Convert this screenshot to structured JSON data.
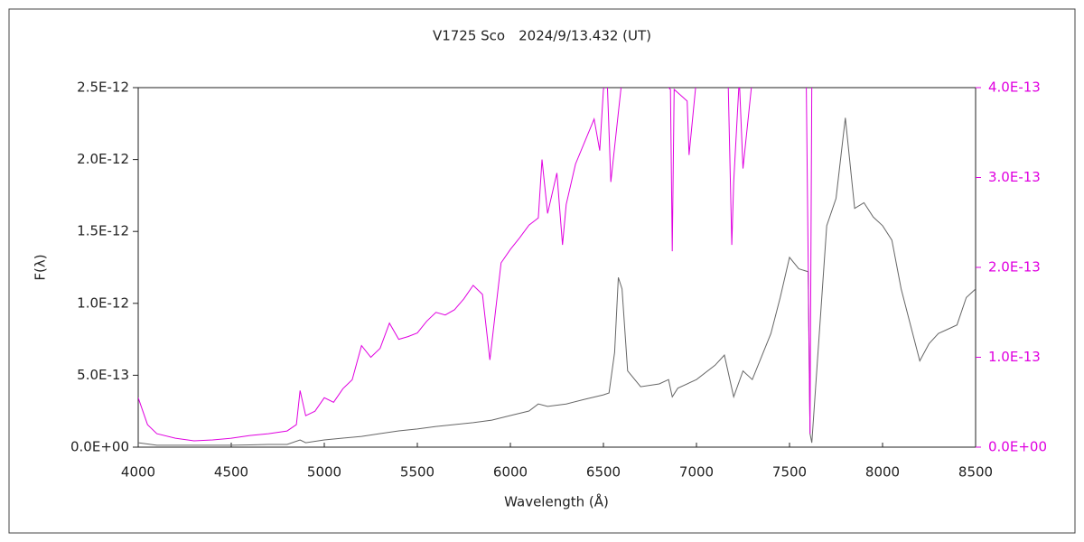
{
  "chart_data": {
    "type": "line",
    "title": "V1725 Sco　2024/9/13.432 (UT)",
    "xlabel": "Wavelength (Å)",
    "ylabel": "F(λ)",
    "xlim": [
      4000,
      8500
    ],
    "xticks": [
      4000,
      4500,
      5000,
      5500,
      6000,
      6500,
      7000,
      7500,
      8000,
      8500
    ],
    "ylim": [
      0,
      2.5e-12
    ],
    "yticks": [
      {
        "value": 0,
        "label": "0.0E+00"
      },
      {
        "value": 5e-13,
        "label": "5.0E-13"
      },
      {
        "value": 1e-12,
        "label": "1.0E-12"
      },
      {
        "value": 1.5e-12,
        "label": "1.5E-12"
      },
      {
        "value": 2e-12,
        "label": "2.0E-12"
      },
      {
        "value": 2.5e-12,
        "label": "2.5E-12"
      }
    ],
    "y2lim": [
      0,
      4e-13
    ],
    "y2ticks": [
      {
        "value": 0,
        "label": "0.0E+00"
      },
      {
        "value": 1e-13,
        "label": "1.0E-13"
      },
      {
        "value": 2e-13,
        "label": "2.0E-13"
      },
      {
        "value": 3e-13,
        "label": "3.0E-13"
      },
      {
        "value": 4e-13,
        "label": "4.0E-13"
      }
    ],
    "series": [
      {
        "color": "#666666",
        "x": [
          4000,
          4100,
          4200,
          4300,
          4400,
          4500,
          4600,
          4700,
          4800,
          4870,
          4900,
          5000,
          5100,
          5200,
          5300,
          5400,
          5500,
          5600,
          5700,
          5800,
          5900,
          6000,
          6100,
          6150,
          6200,
          6300,
          6400,
          6500,
          6530,
          6560,
          6580,
          6600,
          6630,
          6700,
          6800,
          6850,
          6870,
          6900,
          7000,
          7100,
          7150,
          7200,
          7250,
          7300,
          7350,
          7400,
          7450,
          7500,
          7550,
          7600,
          7610,
          7620,
          7650,
          7700,
          7750,
          7800,
          7850,
          7900,
          7950,
          8000,
          8050,
          8100,
          8150,
          8200,
          8250,
          8300,
          8350,
          8400,
          8450,
          8500
        ],
        "values": [
          3.1e-14,
          1.3e-14,
          1.3e-14,
          1.3e-14,
          1.3e-14,
          1.3e-14,
          1.6e-14,
          1.9e-14,
          1.9e-14,
          5e-14,
          3.1e-14,
          5e-14,
          6.3e-14,
          7.5e-14,
          9.4e-14,
          1.13e-13,
          1.26e-13,
          1.44e-13,
          1.57e-13,
          1.7e-13,
          1.88e-13,
          2.2e-13,
          2.51e-13,
          3e-13,
          2.83e-13,
          3e-13,
          3.33e-13,
          3.64e-13,
          3.77e-13,
          6.6e-13,
          1.18e-12,
          1.1e-12,
          5.3e-13,
          4.2e-13,
          4.4e-13,
          4.7e-13,
          3.5e-13,
          4.1e-13,
          4.7e-13,
          5.7e-13,
          6.4e-13,
          3.5e-13,
          5.3e-13,
          4.7e-13,
          6.3e-13,
          7.9e-13,
          1.04e-12,
          1.32e-12,
          1.24e-12,
          1.22e-12,
          9.4e-14,
          3.1e-14,
          6e-13,
          1.54e-12,
          1.73e-12,
          2.29e-12,
          1.66e-12,
          1.7e-12,
          1.6e-12,
          1.54e-12,
          1.44e-12,
          1.1e-12,
          8.5e-13,
          6e-13,
          7.2e-13,
          7.9e-13,
          8.2e-13,
          8.5e-13,
          1.04e-12,
          1.1e-12
        ]
      },
      {
        "color": "#e000e0",
        "axis": "y2",
        "x": [
          4000,
          4050,
          4100,
          4200,
          4300,
          4400,
          4500,
          4600,
          4700,
          4800,
          4850,
          4870,
          4900,
          4950,
          5000,
          5050,
          5100,
          5150,
          5200,
          5250,
          5300,
          5350,
          5400,
          5450,
          5500,
          5550,
          5600,
          5650,
          5700,
          5750,
          5800,
          5850,
          5890,
          5950,
          6000,
          6050,
          6100,
          6150,
          6170,
          6200,
          6250,
          6280,
          6300,
          6350,
          6400,
          6450,
          6480,
          6500,
          6520,
          6540,
          6600,
          6800,
          6860,
          6870,
          6880,
          6950,
          6960,
          7000,
          7170,
          7190,
          7200,
          7230,
          7250,
          7300,
          7590,
          7610,
          7620,
          7650
        ],
        "values": [
          5.5e-14,
          2.5e-14,
          1.5e-14,
          1e-14,
          7e-15,
          8e-15,
          1e-14,
          1.3e-14,
          1.5e-14,
          1.8e-14,
          2.5e-14,
          6.3e-14,
          3.5e-14,
          4e-14,
          5.5e-14,
          5e-14,
          6.5e-14,
          7.5e-14,
          1.13e-13,
          1e-13,
          1.1e-13,
          1.38e-13,
          1.2e-13,
          1.23e-13,
          1.27e-13,
          1.4e-13,
          1.5e-13,
          1.47e-13,
          1.53e-13,
          1.65e-13,
          1.8e-13,
          1.7e-13,
          9.7e-14,
          2.05e-13,
          2.2e-13,
          2.33e-13,
          2.47e-13,
          2.55e-13,
          3.2e-13,
          2.6e-13,
          3.05e-13,
          2.25e-13,
          2.7e-13,
          3.15e-13,
          3.4e-13,
          3.65e-13,
          3.3e-13,
          3.98e-13,
          4.1e-13,
          2.95e-13,
          4.1e-13,
          4.1e-13,
          3.98e-13,
          2.18e-13,
          3.98e-13,
          3.85e-13,
          3.25e-13,
          4.1e-13,
          4.1e-13,
          2.25e-13,
          2.95e-13,
          4.1e-13,
          3.1e-13,
          4.1e-13,
          4.1e-13,
          1.5e-14,
          4.1e-13,
          4.1e-13
        ]
      }
    ]
  }
}
